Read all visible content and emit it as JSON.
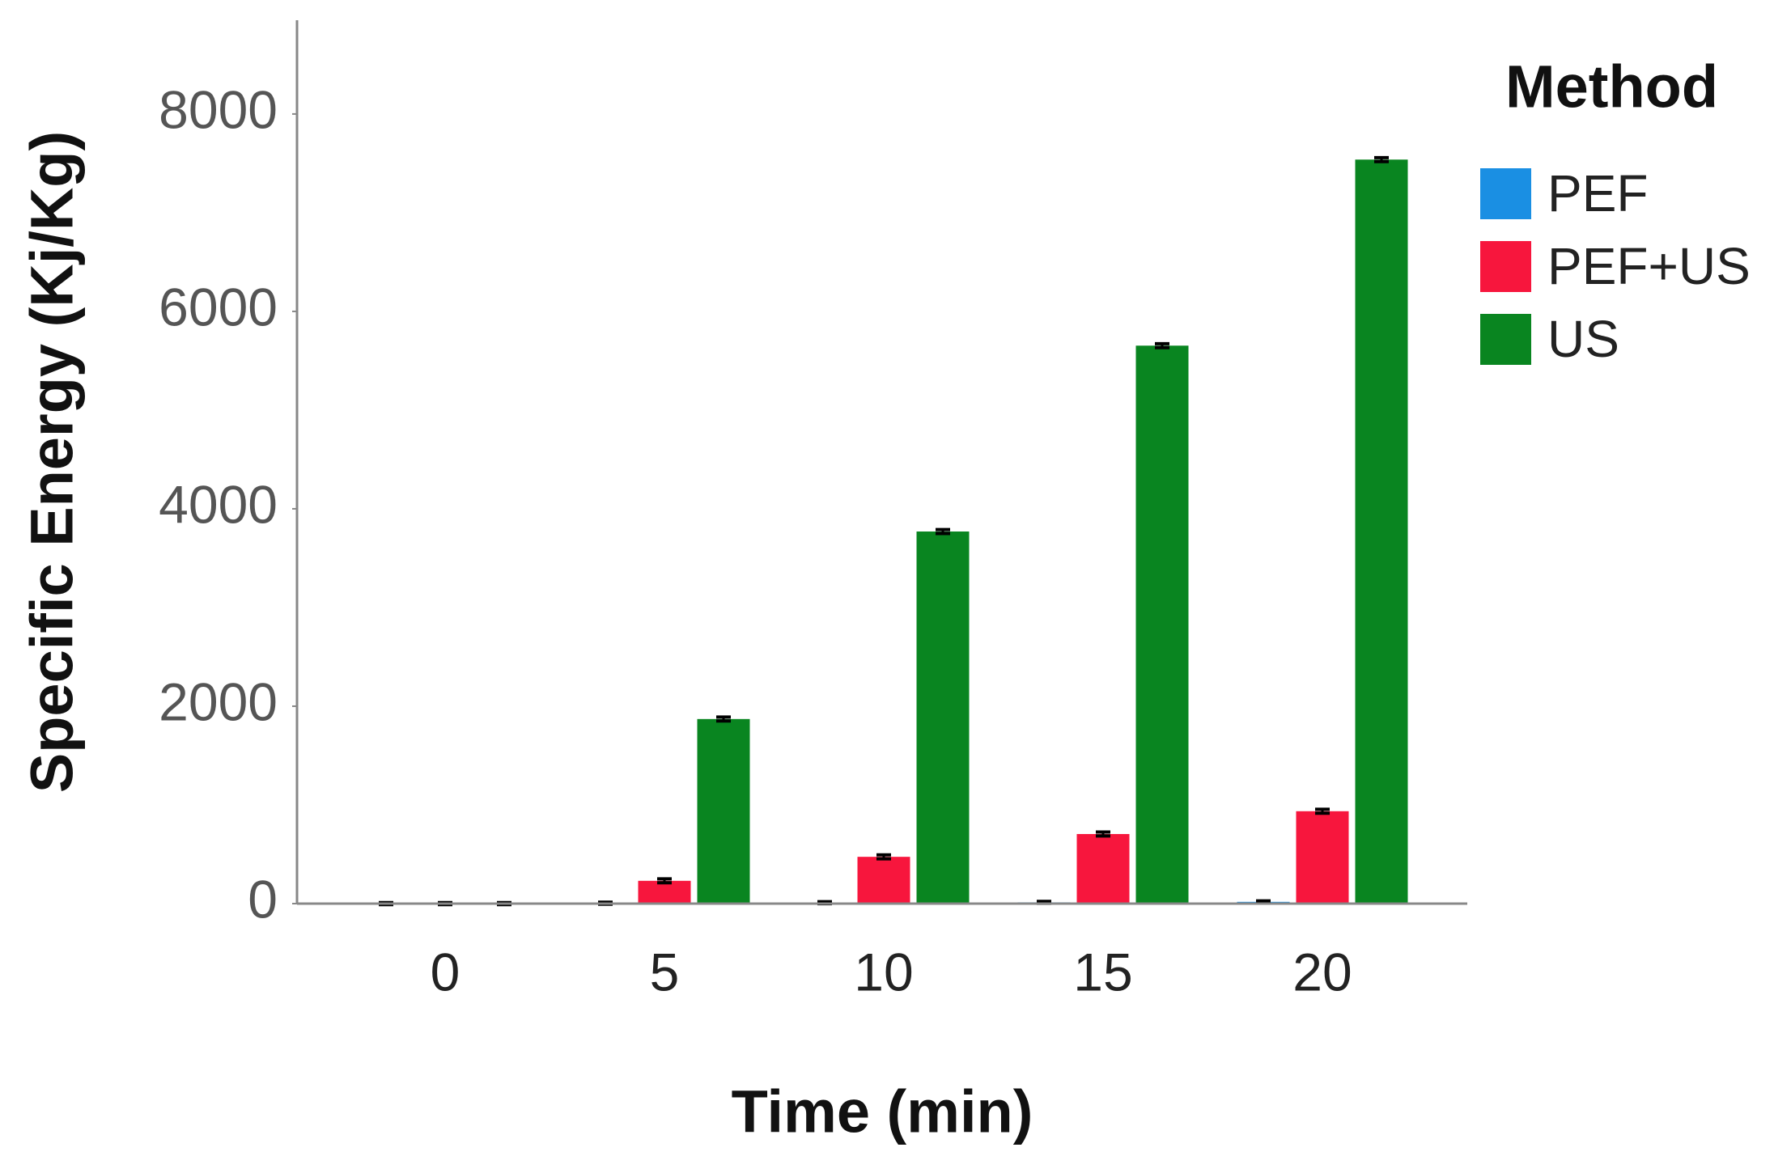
{
  "chart_data": {
    "type": "bar",
    "y_label": "Specific Energy (Kj/Kg)",
    "x_label": "Time (min)",
    "legend_title": "Method",
    "categories": [
      "0",
      "5",
      "10",
      "15",
      "20"
    ],
    "series": [
      {
        "name": "PEF",
        "color": "#1a8fe3",
        "values": [
          0,
          4,
          9,
          13,
          18
        ],
        "errors": [
          10,
          10,
          10,
          10,
          10
        ]
      },
      {
        "name": "PEF+US",
        "color": "#f7163d",
        "values": [
          0,
          231,
          474,
          705,
          936
        ],
        "errors": [
          10,
          20,
          20,
          20,
          20
        ]
      },
      {
        "name": "US",
        "color": "#098520",
        "values": [
          0,
          1870,
          3770,
          5653,
          7538
        ],
        "errors": [
          10,
          20,
          20,
          20,
          20
        ]
      }
    ],
    "ylim": [
      0,
      8950
    ],
    "yticks": [
      0,
      2000,
      4000,
      6000,
      8000
    ],
    "legend_position": "right"
  }
}
